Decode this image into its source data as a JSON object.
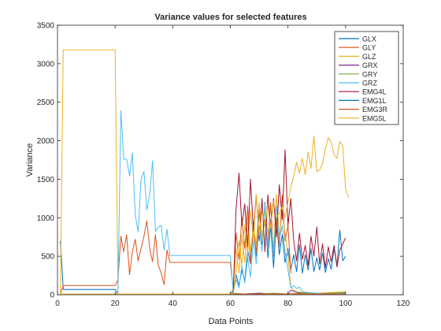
{
  "chart_data": {
    "type": "line",
    "title": "Variance values for selected features",
    "xlabel": "Data Points",
    "ylabel": "Variance",
    "xlim": [
      0,
      120
    ],
    "ylim": [
      0,
      3500
    ],
    "xticks": [
      0,
      20,
      40,
      60,
      80,
      100,
      120
    ],
    "yticks": [
      0,
      500,
      1000,
      1500,
      2000,
      2500,
      3000,
      3500
    ],
    "grid": false,
    "legend_position": "top-right",
    "series": [
      {
        "name": "GLX",
        "color": "#0072bd",
        "points": [
          [
            1,
            700
          ],
          [
            2,
            70
          ],
          [
            10,
            70
          ],
          [
            20,
            70
          ],
          [
            21,
            10
          ],
          [
            25,
            10
          ],
          [
            40,
            10
          ],
          [
            60,
            10
          ],
          [
            61,
            50
          ],
          [
            62,
            260
          ],
          [
            63,
            120
          ],
          [
            64,
            320
          ],
          [
            65,
            180
          ],
          [
            66,
            580
          ],
          [
            67,
            400
          ],
          [
            68,
            950
          ],
          [
            69,
            500
          ],
          [
            70,
            1100
          ],
          [
            71,
            650
          ],
          [
            72,
            1200
          ],
          [
            73,
            480
          ],
          [
            74,
            900
          ],
          [
            75,
            350
          ],
          [
            76,
            1000
          ],
          [
            77,
            520
          ],
          [
            78,
            780
          ],
          [
            79,
            420
          ],
          [
            80,
            600
          ],
          [
            81,
            330
          ],
          [
            82,
            520
          ],
          [
            83,
            300
          ],
          [
            84,
            650
          ],
          [
            85,
            280
          ],
          [
            86,
            520
          ],
          [
            87,
            320
          ],
          [
            88,
            600
          ],
          [
            89,
            300
          ],
          [
            90,
            480
          ],
          [
            91,
            320
          ],
          [
            92,
            540
          ],
          [
            93,
            290
          ],
          [
            94,
            470
          ],
          [
            95,
            330
          ],
          [
            96,
            600
          ],
          [
            97,
            380
          ],
          [
            98,
            840
          ],
          [
            99,
            440
          ],
          [
            100,
            500
          ]
        ]
      },
      {
        "name": "GLY",
        "color": "#d95319",
        "points": [
          [
            1,
            10
          ],
          [
            2,
            120
          ],
          [
            10,
            120
          ],
          [
            20,
            120
          ],
          [
            21,
            200
          ],
          [
            22,
            760
          ],
          [
            23,
            560
          ],
          [
            24,
            780
          ],
          [
            25,
            260
          ],
          [
            26,
            560
          ],
          [
            27,
            720
          ],
          [
            28,
            440
          ],
          [
            29,
            600
          ],
          [
            30,
            760
          ],
          [
            31,
            960
          ],
          [
            32,
            600
          ],
          [
            33,
            430
          ],
          [
            34,
            780
          ],
          [
            35,
            380
          ],
          [
            36,
            280
          ],
          [
            37,
            130
          ],
          [
            38,
            580
          ],
          [
            39,
            420
          ],
          [
            50,
            420
          ],
          [
            60,
            420
          ],
          [
            61,
            70
          ],
          [
            62,
            800
          ],
          [
            63,
            460
          ],
          [
            64,
            1000
          ],
          [
            65,
            600
          ],
          [
            66,
            1150
          ],
          [
            67,
            400
          ],
          [
            68,
            900
          ],
          [
            69,
            540
          ],
          [
            70,
            1150
          ],
          [
            71,
            720
          ],
          [
            72,
            980
          ],
          [
            73,
            650
          ],
          [
            74,
            1200
          ],
          [
            75,
            500
          ],
          [
            76,
            980
          ],
          [
            77,
            620
          ],
          [
            78,
            1300
          ],
          [
            79,
            700
          ],
          [
            80,
            900
          ],
          [
            81,
            280
          ]
        ]
      },
      {
        "name": "GLZ",
        "color": "#edb120",
        "points": [
          [
            1,
            10
          ],
          [
            2,
            3180
          ],
          [
            10,
            3180
          ],
          [
            20,
            3180
          ],
          [
            21,
            10
          ],
          [
            40,
            10
          ],
          [
            60,
            10
          ],
          [
            61,
            80
          ],
          [
            62,
            600
          ],
          [
            63,
            280
          ],
          [
            64,
            780
          ],
          [
            65,
            420
          ],
          [
            66,
            1000
          ],
          [
            67,
            560
          ],
          [
            68,
            900
          ],
          [
            69,
            640
          ],
          [
            70,
            1200
          ],
          [
            71,
            700
          ],
          [
            72,
            1150
          ],
          [
            73,
            800
          ],
          [
            74,
            980
          ],
          [
            75,
            620
          ],
          [
            76,
            1300
          ],
          [
            77,
            760
          ],
          [
            78,
            1060
          ],
          [
            79,
            800
          ],
          [
            80,
            500
          ],
          [
            81,
            100
          ],
          [
            82,
            60
          ],
          [
            83,
            40
          ],
          [
            85,
            30
          ],
          [
            87,
            20
          ],
          [
            90,
            20
          ],
          [
            95,
            30
          ],
          [
            100,
            40
          ]
        ]
      },
      {
        "name": "GRX",
        "color": "#7e2f8e",
        "points": [
          [
            1,
            10
          ],
          [
            20,
            10
          ],
          [
            21,
            10
          ],
          [
            40,
            10
          ],
          [
            60,
            10
          ],
          [
            61,
            10
          ],
          [
            65,
            10
          ],
          [
            70,
            20
          ],
          [
            75,
            10
          ],
          [
            80,
            10
          ],
          [
            81,
            60
          ],
          [
            83,
            30
          ],
          [
            86,
            20
          ],
          [
            90,
            10
          ],
          [
            95,
            20
          ],
          [
            100,
            10
          ]
        ]
      },
      {
        "name": "GRY",
        "color": "#77ac30",
        "points": [
          [
            1,
            10
          ],
          [
            20,
            10
          ],
          [
            21,
            10
          ],
          [
            40,
            10
          ],
          [
            60,
            10
          ],
          [
            61,
            20
          ],
          [
            65,
            10
          ],
          [
            70,
            10
          ],
          [
            75,
            20
          ],
          [
            80,
            10
          ],
          [
            85,
            20
          ],
          [
            90,
            10
          ],
          [
            95,
            20
          ],
          [
            100,
            30
          ]
        ]
      },
      {
        "name": "GRZ",
        "color": "#4dbeee",
        "points": [
          [
            1,
            10
          ],
          [
            20,
            10
          ],
          [
            21,
            40
          ],
          [
            22,
            2390
          ],
          [
            23,
            1760
          ],
          [
            24,
            1760
          ],
          [
            25,
            1540
          ],
          [
            26,
            1840
          ],
          [
            27,
            1030
          ],
          [
            28,
            820
          ],
          [
            29,
            1500
          ],
          [
            30,
            1600
          ],
          [
            31,
            1100
          ],
          [
            32,
            1300
          ],
          [
            33,
            1740
          ],
          [
            34,
            820
          ],
          [
            35,
            880
          ],
          [
            36,
            900
          ],
          [
            37,
            580
          ],
          [
            38,
            850
          ],
          [
            39,
            510
          ],
          [
            50,
            510
          ],
          [
            60,
            510
          ],
          [
            61,
            30
          ],
          [
            62,
            200
          ],
          [
            63,
            90
          ],
          [
            64,
            380
          ],
          [
            65,
            150
          ],
          [
            66,
            480
          ],
          [
            67,
            230
          ],
          [
            68,
            720
          ],
          [
            69,
            400
          ],
          [
            70,
            900
          ],
          [
            71,
            560
          ],
          [
            72,
            1180
          ],
          [
            73,
            620
          ],
          [
            74,
            980
          ],
          [
            75,
            520
          ],
          [
            76,
            1150
          ],
          [
            77,
            720
          ],
          [
            78,
            900
          ],
          [
            79,
            560
          ],
          [
            80,
            320
          ],
          [
            81,
            90
          ],
          [
            82,
            120
          ],
          [
            83,
            80
          ],
          [
            84,
            100
          ],
          [
            85,
            40
          ],
          [
            87,
            30
          ],
          [
            90,
            20
          ],
          [
            95,
            10
          ],
          [
            100,
            20
          ]
        ]
      },
      {
        "name": "EMG4L",
        "color": "#a2142f",
        "points": [
          [
            1,
            10
          ],
          [
            20,
            10
          ],
          [
            21,
            10
          ],
          [
            40,
            10
          ],
          [
            60,
            10
          ],
          [
            61,
            20
          ],
          [
            62,
            1120
          ],
          [
            63,
            1580
          ],
          [
            64,
            900
          ],
          [
            65,
            1180
          ],
          [
            66,
            620
          ],
          [
            67,
            1500
          ],
          [
            68,
            820
          ],
          [
            69,
            1300
          ],
          [
            70,
            700
          ],
          [
            71,
            1250
          ],
          [
            72,
            560
          ],
          [
            73,
            1300
          ],
          [
            74,
            880
          ],
          [
            75,
            1250
          ],
          [
            76,
            750
          ],
          [
            77,
            1430
          ],
          [
            78,
            980
          ],
          [
            79,
            1880
          ],
          [
            80,
            900
          ],
          [
            81,
            1250
          ],
          [
            82,
            700
          ],
          [
            83,
            440
          ],
          [
            84,
            800
          ],
          [
            85,
            460
          ],
          [
            86,
            640
          ],
          [
            87,
            380
          ],
          [
            88,
            760
          ],
          [
            89,
            500
          ],
          [
            90,
            880
          ],
          [
            91,
            400
          ],
          [
            92,
            660
          ],
          [
            93,
            350
          ],
          [
            94,
            620
          ],
          [
            95,
            430
          ],
          [
            96,
            640
          ],
          [
            97,
            360
          ],
          [
            98,
            580
          ],
          [
            99,
            660
          ],
          [
            100,
            740
          ]
        ]
      },
      {
        "name": "EMG1L",
        "color": "#0072bd",
        "points": [
          [
            1,
            10
          ],
          [
            20,
            10
          ],
          [
            21,
            10
          ],
          [
            40,
            10
          ],
          [
            60,
            10
          ],
          [
            61,
            10
          ],
          [
            70,
            10
          ],
          [
            80,
            10
          ],
          [
            90,
            10
          ],
          [
            100,
            10
          ]
        ]
      },
      {
        "name": "EMG3R",
        "color": "#d95319",
        "points": [
          [
            1,
            10
          ],
          [
            20,
            10
          ],
          [
            21,
            10
          ],
          [
            40,
            10
          ],
          [
            60,
            10
          ],
          [
            61,
            10
          ],
          [
            70,
            10
          ],
          [
            80,
            10
          ],
          [
            90,
            10
          ],
          [
            100,
            10
          ]
        ]
      },
      {
        "name": "EMG5L",
        "color": "#edb120",
        "points": [
          [
            1,
            10
          ],
          [
            20,
            10
          ],
          [
            21,
            10
          ],
          [
            40,
            10
          ],
          [
            60,
            10
          ],
          [
            61,
            20
          ],
          [
            62,
            300
          ],
          [
            63,
            700
          ],
          [
            64,
            380
          ],
          [
            65,
            920
          ],
          [
            66,
            520
          ],
          [
            67,
            1100
          ],
          [
            68,
            700
          ],
          [
            69,
            1300
          ],
          [
            70,
            760
          ],
          [
            71,
            1080
          ],
          [
            72,
            900
          ],
          [
            73,
            1160
          ],
          [
            74,
            860
          ],
          [
            75,
            1220
          ],
          [
            76,
            1000
          ],
          [
            77,
            1060
          ],
          [
            78,
            1150
          ],
          [
            79,
            1000
          ],
          [
            80,
            1200
          ],
          [
            81,
            1400
          ],
          [
            82,
            1540
          ],
          [
            83,
            1720
          ],
          [
            84,
            1580
          ],
          [
            85,
            1770
          ],
          [
            86,
            1560
          ],
          [
            87,
            1850
          ],
          [
            88,
            1640
          ],
          [
            89,
            2060
          ],
          [
            90,
            1600
          ],
          [
            91,
            1620
          ],
          [
            92,
            1700
          ],
          [
            93,
            1900
          ],
          [
            94,
            2040
          ],
          [
            95,
            1980
          ],
          [
            96,
            1820
          ],
          [
            97,
            1770
          ],
          [
            98,
            1990
          ],
          [
            99,
            1940
          ],
          [
            100,
            1380
          ],
          [
            101,
            1260
          ]
        ]
      }
    ]
  }
}
